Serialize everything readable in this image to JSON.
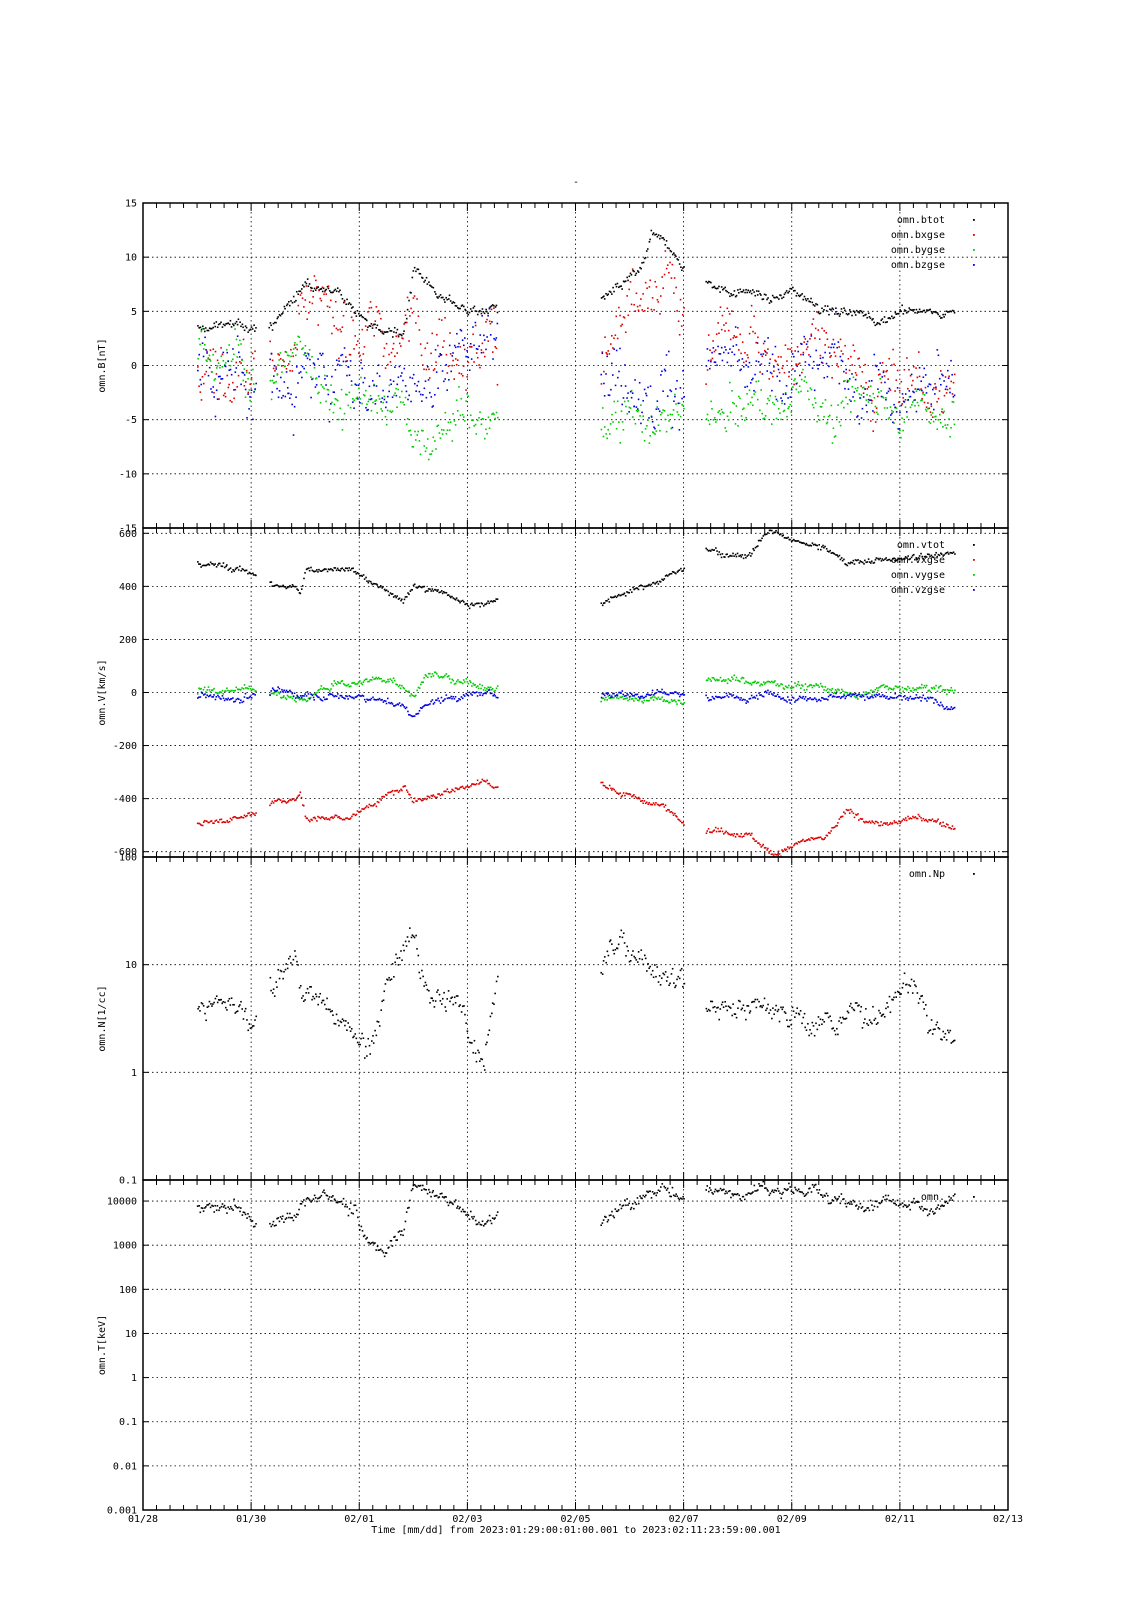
{
  "page_title": "-",
  "x_axis": {
    "label": "Time [mm/dd]  from 2023:01:29:00:01:00.001  to  2023:02:11:23:59:00.001",
    "range_days": [
      0,
      16
    ],
    "ticks": [
      {
        "day": 0,
        "label": "01/28"
      },
      {
        "day": 2,
        "label": "01/30"
      },
      {
        "day": 4,
        "label": "02/01"
      },
      {
        "day": 6,
        "label": "02/03"
      },
      {
        "day": 8,
        "label": "02/05"
      },
      {
        "day": 10,
        "label": "02/07"
      },
      {
        "day": 12,
        "label": "02/09"
      },
      {
        "day": 14,
        "label": "02/11"
      },
      {
        "day": 16,
        "label": "02/13"
      }
    ]
  },
  "chart_data": [
    {
      "type": "scatter",
      "ylabel": "omn.B[nT]",
      "ylim": [
        -15,
        15
      ],
      "yscale": "linear",
      "yticks": [
        {
          "v": 15,
          "label": "15"
        },
        {
          "v": 10,
          "label": "10"
        },
        {
          "v": 5,
          "label": "5"
        },
        {
          "v": 0,
          "label": "0"
        },
        {
          "v": -5,
          "label": "-5"
        },
        {
          "v": -10,
          "label": "-10"
        },
        {
          "v": -15,
          "label": "-15"
        }
      ],
      "grid": true,
      "legend_position": "top-right",
      "series": [
        {
          "name": "omn.btot",
          "color": "#000000",
          "x": [
            1.0,
            1.3,
            1.7,
            2.0,
            2.4,
            2.8,
            3.0,
            3.3,
            3.6,
            3.9,
            4.2,
            4.5,
            4.8,
            5.0,
            5.2,
            5.6,
            6.0,
            6.3,
            6.5,
            8.4,
            8.8,
            9.2,
            9.4,
            9.7,
            10.0,
            10.4,
            10.8,
            11.2,
            11.6,
            12.0,
            12.4,
            12.8,
            13.2,
            13.6,
            14.0,
            14.4,
            14.8,
            15.0
          ],
          "y": [
            3.5,
            3.5,
            4,
            3.5,
            4,
            6,
            8,
            7,
            7,
            5,
            4,
            3,
            3,
            9,
            8,
            6,
            5,
            5,
            5,
            6,
            7,
            9,
            12,
            11,
            9,
            8,
            7,
            7,
            6,
            7,
            6,
            5,
            5,
            4,
            5,
            5,
            5,
            5
          ],
          "noise": 0.4
        },
        {
          "name": "omn.bxgse",
          "color": "#dd0000",
          "x": [
            1.0,
            1.3,
            1.7,
            2.0,
            2.4,
            2.8,
            3.0,
            3.3,
            3.6,
            3.9,
            4.2,
            4.5,
            4.8,
            5.0,
            5.2,
            5.6,
            6.0,
            6.3,
            6.5,
            8.4,
            8.8,
            9.2,
            9.4,
            9.7,
            10.0,
            10.4,
            10.8,
            11.2,
            11.6,
            12.0,
            12.4,
            12.8,
            13.2,
            13.6,
            14.0,
            14.4,
            14.8,
            15.0
          ],
          "y": [
            -1,
            1,
            -2,
            1,
            1,
            3,
            7,
            5,
            4,
            3,
            3,
            2,
            2,
            5,
            4,
            3,
            2,
            2,
            2,
            0,
            3,
            5,
            6,
            7,
            5,
            1,
            3,
            1,
            2,
            1,
            2,
            0,
            -1,
            0,
            -2,
            -2,
            -3,
            -3
          ],
          "noise": 2.5
        },
        {
          "name": "omn.bygse",
          "color": "#00cc00",
          "x": [
            1.0,
            1.3,
            1.7,
            2.0,
            2.4,
            2.8,
            3.0,
            3.3,
            3.6,
            3.9,
            4.2,
            4.5,
            4.8,
            5.0,
            5.2,
            5.6,
            6.0,
            6.3,
            6.5,
            8.4,
            8.8,
            9.2,
            9.4,
            9.7,
            10.0,
            10.4,
            10.8,
            11.2,
            11.6,
            12.0,
            12.4,
            12.8,
            13.2,
            13.6,
            14.0,
            14.4,
            14.8,
            15.0
          ],
          "y": [
            2,
            1,
            2,
            0,
            -1,
            2,
            1,
            -1,
            -4,
            -4,
            -3,
            -3,
            -3,
            -6,
            -6,
            -5,
            -5,
            -5,
            -5,
            -6,
            -4,
            -3,
            -7,
            -5,
            -4,
            -5,
            -5,
            -4,
            -4,
            -3,
            -3,
            -4,
            -3,
            -3,
            -4,
            -4,
            -4,
            -4
          ],
          "noise": 1.8
        },
        {
          "name": "omn.bzgse",
          "color": "#0000dd",
          "x": [
            1.0,
            1.3,
            1.7,
            2.0,
            2.4,
            2.8,
            3.0,
            3.3,
            3.6,
            3.9,
            4.2,
            4.5,
            4.8,
            5.0,
            5.2,
            5.6,
            6.0,
            6.3,
            6.5,
            8.4,
            8.8,
            9.2,
            9.4,
            9.7,
            10.0,
            10.4,
            10.8,
            11.2,
            11.6,
            12.0,
            12.4,
            12.8,
            13.2,
            13.6,
            14.0,
            14.4,
            14.8,
            15.0
          ],
          "y": [
            0,
            -2,
            0,
            -1,
            -1,
            -2,
            0,
            -2,
            0,
            -2,
            -1,
            0,
            -1,
            -1,
            -2,
            1,
            3,
            2,
            2,
            0,
            0,
            -1,
            -4,
            -2,
            -2,
            0,
            0,
            -1,
            -2,
            -1,
            -1,
            0,
            -3,
            0,
            -3,
            -3,
            -2,
            -1
          ],
          "noise": 2.5
        }
      ],
      "gaps": [
        [
          2.08,
          2.32
        ],
        [
          6.55,
          8.45
        ],
        [
          10.0,
          10.4
        ]
      ]
    },
    {
      "type": "scatter",
      "ylabel": "omn.V[km/s]",
      "ylim": [
        -620,
        620
      ],
      "yscale": "linear",
      "yticks": [
        {
          "v": 600,
          "label": "600"
        },
        {
          "v": 400,
          "label": "400"
        },
        {
          "v": 200,
          "label": "200"
        },
        {
          "v": 0,
          "label": "0"
        },
        {
          "v": -200,
          "label": "-200"
        },
        {
          "v": -400,
          "label": "-400"
        },
        {
          "v": -600,
          "label": "-600"
        }
      ],
      "grid": true,
      "legend_position": "top-right",
      "series": [
        {
          "name": "omn.vtot",
          "color": "#000000",
          "x": [
            1.0,
            1.4,
            1.8,
            2.0,
            2.4,
            2.8,
            2.9,
            3.0,
            3.4,
            3.8,
            4.2,
            4.5,
            4.8,
            5.0,
            5.3,
            5.6,
            6.0,
            6.3,
            6.5,
            8.4,
            8.8,
            9.2,
            9.6,
            10.0,
            10.4,
            10.8,
            11.2,
            11.6,
            11.9,
            12.2,
            12.6,
            13.0,
            13.4,
            13.8,
            14.2,
            14.6,
            15.0
          ],
          "y": [
            490,
            480,
            465,
            455,
            405,
            400,
            380,
            470,
            470,
            460,
            420,
            380,
            360,
            410,
            390,
            370,
            340,
            335,
            355,
            335,
            370,
            400,
            430,
            480,
            550,
            520,
            525,
            610,
            585,
            560,
            550,
            490,
            500,
            500,
            520,
            510,
            530
          ],
          "noise": 10
        },
        {
          "name": "omn.vxgse",
          "color": "#dd0000",
          "x": [
            1.0,
            1.4,
            1.8,
            2.0,
            2.4,
            2.8,
            2.9,
            3.0,
            3.4,
            3.8,
            4.2,
            4.5,
            4.8,
            5.0,
            5.3,
            5.6,
            6.0,
            6.3,
            6.5,
            8.4,
            8.8,
            9.2,
            9.6,
            10.0,
            10.4,
            10.8,
            11.2,
            11.6,
            11.9,
            12.2,
            12.6,
            13.0,
            13.4,
            13.8,
            14.2,
            14.6,
            15.0
          ],
          "y": [
            -490,
            -480,
            -465,
            -455,
            -405,
            -400,
            -380,
            -470,
            -470,
            -460,
            -420,
            -380,
            -360,
            -400,
            -390,
            -370,
            -340,
            -335,
            -355,
            -335,
            -370,
            -400,
            -430,
            -480,
            -510,
            -520,
            -525,
            -610,
            -585,
            -560,
            -550,
            -450,
            -480,
            -500,
            -470,
            -480,
            -500
          ],
          "noise": 10
        },
        {
          "name": "omn.vygse",
          "color": "#00cc00",
          "x": [
            1.0,
            1.4,
            1.8,
            2.0,
            2.4,
            2.8,
            3.0,
            3.3,
            3.6,
            4.0,
            4.3,
            4.6,
            4.8,
            5.0,
            5.2,
            5.5,
            6.0,
            6.5,
            8.4,
            8.8,
            9.2,
            9.6,
            10.0,
            10.4,
            10.8,
            11.2,
            11.6,
            12.0,
            12.4,
            12.8,
            13.2,
            13.6,
            14.0,
            14.4,
            15.0
          ],
          "y": [
            10,
            10,
            15,
            10,
            0,
            -25,
            -30,
            20,
            40,
            40,
            50,
            50,
            30,
            -10,
            70,
            60,
            40,
            20,
            -30,
            -20,
            -20,
            -20,
            -30,
            60,
            50,
            40,
            40,
            30,
            30,
            10,
            -20,
            20,
            20,
            20,
            20
          ],
          "noise": 12
        },
        {
          "name": "omn.vzgse",
          "color": "#0000dd",
          "x": [
            1.0,
            1.4,
            1.8,
            2.0,
            2.4,
            2.8,
            3.0,
            3.3,
            3.6,
            4.0,
            4.3,
            4.6,
            4.8,
            5.0,
            5.2,
            5.5,
            6.0,
            6.5,
            8.4,
            8.8,
            9.2,
            9.6,
            10.0,
            10.4,
            10.8,
            11.2,
            11.6,
            12.0,
            12.4,
            12.8,
            13.2,
            13.6,
            14.0,
            14.4,
            15.0
          ],
          "y": [
            -10,
            -10,
            -15,
            -10,
            0,
            -5,
            0,
            -10,
            -10,
            -15,
            -20,
            -40,
            -50,
            -90,
            -40,
            -20,
            -5,
            0,
            0,
            0,
            0,
            0,
            0,
            0,
            -10,
            -20,
            0,
            -20,
            -10,
            -10,
            0,
            -10,
            -20,
            -20,
            -50
          ],
          "noise": 12
        }
      ],
      "gaps": [
        [
          2.08,
          2.32
        ],
        [
          6.55,
          8.45
        ],
        [
          10.0,
          10.4
        ]
      ]
    },
    {
      "type": "scatter",
      "ylabel": "omn.N[1/cc]",
      "ylim": [
        0.1,
        100
      ],
      "yscale": "log",
      "yticks": [
        {
          "v": 100,
          "label": "100"
        },
        {
          "v": 10,
          "label": "10"
        },
        {
          "v": 1,
          "label": "1"
        },
        {
          "v": 0.1,
          "label": "0.1"
        }
      ],
      "grid": true,
      "legend_position": "top-right",
      "series": [
        {
          "name": "omn.Np",
          "color": "#000000",
          "x": [
            1.0,
            1.3,
            1.6,
            2.0,
            2.3,
            2.6,
            2.8,
            2.9,
            3.1,
            3.4,
            3.7,
            4.0,
            4.2,
            4.4,
            4.6,
            4.8,
            5.0,
            5.1,
            5.3,
            5.6,
            5.9,
            6.1,
            6.3,
            6.6,
            8.4,
            8.6,
            8.9,
            9.2,
            9.5,
            9.8,
            10.0,
            10.4,
            10.8,
            11.2,
            11.6,
            12.0,
            12.4,
            12.8,
            13.2,
            13.6,
            13.9,
            14.2,
            14.5,
            14.8,
            15.0
          ],
          "y": [
            4,
            4.5,
            4,
            4,
            6,
            10,
            15,
            5,
            5,
            4,
            3,
            2,
            2,
            4,
            8,
            14,
            22,
            7,
            6,
            4.5,
            3,
            2,
            1.5,
            9,
            8,
            12,
            16,
            11,
            10,
            8,
            7,
            3.5,
            4,
            4,
            4,
            3.5,
            2.5,
            2.5,
            4,
            3,
            5,
            7,
            3,
            2,
            2
          ],
          "noise": 0.12,
          "log_noise": true
        }
      ],
      "gaps": [
        [
          2.08,
          2.32
        ],
        [
          6.55,
          8.45
        ],
        [
          10.0,
          10.4
        ]
      ]
    },
    {
      "type": "scatter",
      "ylabel": "omn.T[keV]",
      "ylim": [
        0.001,
        30000
      ],
      "yscale": "log",
      "yticks": [
        {
          "v": 10000,
          "label": "10000"
        },
        {
          "v": 1000,
          "label": "1000"
        },
        {
          "v": 100,
          "label": "100"
        },
        {
          "v": 10,
          "label": "10"
        },
        {
          "v": 1,
          "label": "1"
        },
        {
          "v": 0.1,
          "label": "0.1"
        },
        {
          "v": 0.01,
          "label": "0.01"
        },
        {
          "v": 0.001,
          "label": "0.001"
        }
      ],
      "grid": true,
      "legend_position": "top-right",
      "series": [
        {
          "name": "omn.",
          "color": "#000000",
          "x": [
            1.0,
            1.4,
            1.8,
            2.0,
            2.4,
            2.8,
            3.0,
            3.3,
            3.6,
            3.9,
            4.0,
            4.2,
            4.5,
            4.8,
            5.0,
            5.3,
            5.7,
            6.0,
            6.3,
            6.6,
            8.4,
            8.8,
            9.2,
            9.6,
            10.0,
            10.4,
            10.8,
            11.2,
            11.6,
            12.0,
            12.4,
            12.8,
            13.0,
            13.4,
            13.8,
            14.2,
            14.6,
            15.0
          ],
          "y": [
            9000,
            8000,
            8000,
            4000,
            3000,
            4000,
            9000,
            15000,
            12000,
            8000,
            2000,
            1000,
            900,
            3000,
            20000,
            15000,
            10000,
            5000,
            3000,
            6000,
            3000,
            8000,
            12000,
            18000,
            16000,
            20000,
            18000,
            20000,
            18000,
            22000,
            20000,
            12000,
            8000,
            9000,
            12000,
            9000,
            6000,
            15000
          ],
          "noise": 0.15,
          "log_noise": true
        }
      ],
      "gaps": [
        [
          2.08,
          2.32
        ],
        [
          6.55,
          8.45
        ],
        [
          10.0,
          10.4
        ]
      ]
    }
  ]
}
